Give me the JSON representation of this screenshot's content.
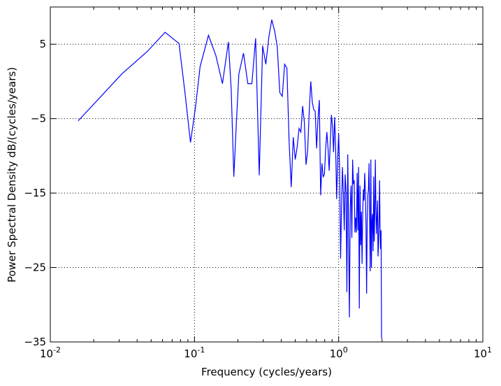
{
  "chart_data": {
    "type": "line",
    "title": "",
    "xlabel": "Frequency (cycles/years)",
    "ylabel": "Power Spectral Density dB/(cycles/years)",
    "xscale": "log",
    "xlim": [
      0.01,
      10
    ],
    "ylim": [
      -35,
      10
    ],
    "grid": true,
    "x_ticks": [
      {
        "value": 0.01,
        "base": "10",
        "exp": "-2"
      },
      {
        "value": 0.1,
        "base": "10",
        "exp": "-1"
      },
      {
        "value": 1,
        "base": "10",
        "exp": "0"
      },
      {
        "value": 10,
        "base": "10",
        "exp": "1"
      }
    ],
    "y_ticks": [
      {
        "value": 5,
        "label": "5"
      },
      {
        "value": -5,
        "label": "−5"
      },
      {
        "value": -15,
        "label": "−15"
      },
      {
        "value": -25,
        "label": "−25"
      },
      {
        "value": -35,
        "label": "−35"
      }
    ],
    "series": [
      {
        "color": "#0000ff",
        "points": [
          [
            0.0156,
            -5.3
          ],
          [
            0.0313,
            1.0
          ],
          [
            0.0469,
            4.0
          ],
          [
            0.0625,
            6.6
          ],
          [
            0.0781,
            5.1
          ],
          [
            0.0859,
            -1.5
          ],
          [
            0.0938,
            -8.2
          ],
          [
            0.1016,
            -3.5
          ],
          [
            0.1094,
            2.0
          ],
          [
            0.125,
            6.2
          ],
          [
            0.1406,
            3.5
          ],
          [
            0.1563,
            -0.3
          ],
          [
            0.1719,
            5.3
          ],
          [
            0.1797,
            -1.0
          ],
          [
            0.1875,
            -12.8
          ],
          [
            0.1953,
            -5.5
          ],
          [
            0.2031,
            1.0
          ],
          [
            0.2188,
            3.8
          ],
          [
            0.2344,
            -0.3
          ],
          [
            0.25,
            -0.3
          ],
          [
            0.2656,
            5.8
          ],
          [
            0.2813,
            -12.6
          ],
          [
            0.2969,
            4.8
          ],
          [
            0.3125,
            2.3
          ],
          [
            0.3281,
            6.0
          ],
          [
            0.3438,
            8.3
          ],
          [
            0.3594,
            6.8
          ],
          [
            0.375,
            4.7
          ],
          [
            0.3906,
            -1.5
          ],
          [
            0.4063,
            -2.0
          ],
          [
            0.4219,
            2.3
          ],
          [
            0.4375,
            1.8
          ],
          [
            0.4531,
            -8.0
          ],
          [
            0.4688,
            -14.2
          ],
          [
            0.4844,
            -7.5
          ],
          [
            0.5,
            -10.5
          ],
          [
            0.5156,
            -8.8
          ],
          [
            0.5313,
            -6.3
          ],
          [
            0.5469,
            -6.8
          ],
          [
            0.5625,
            -3.3
          ],
          [
            0.5781,
            -5.5
          ],
          [
            0.5938,
            -11.2
          ],
          [
            0.6094,
            -9.3
          ],
          [
            0.625,
            -4.0
          ],
          [
            0.6406,
            0.0
          ],
          [
            0.6563,
            -2.8
          ],
          [
            0.6719,
            -3.8
          ],
          [
            0.6875,
            -4.0
          ],
          [
            0.7031,
            -9.0
          ],
          [
            0.7188,
            -5.0
          ],
          [
            0.7344,
            -2.5
          ],
          [
            0.75,
            -15.3
          ],
          [
            0.7656,
            -11.0
          ],
          [
            0.7813,
            -12.8
          ],
          [
            0.7969,
            -12.5
          ],
          [
            0.8125,
            -9.0
          ],
          [
            0.8281,
            -6.8
          ],
          [
            0.8438,
            -9.0
          ],
          [
            0.8594,
            -12.0
          ],
          [
            0.875,
            -8.0
          ],
          [
            0.8906,
            -4.5
          ],
          [
            0.9063,
            -6.0
          ],
          [
            0.9219,
            -9.5
          ],
          [
            0.9375,
            -4.8
          ],
          [
            0.9531,
            -9.0
          ],
          [
            0.9688,
            -15.8
          ],
          [
            0.9844,
            -10.5
          ],
          [
            1.0,
            -7.0
          ],
          [
            1.0156,
            -12.0
          ],
          [
            1.0313,
            -23.8
          ],
          [
            1.0469,
            -17.0
          ],
          [
            1.0625,
            -11.5
          ],
          [
            1.0781,
            -15.0
          ],
          [
            1.0938,
            -20.0
          ],
          [
            1.1094,
            -12.5
          ],
          [
            1.125,
            -14.8
          ],
          [
            1.1406,
            -28.3
          ],
          [
            1.1563,
            -9.8
          ],
          [
            1.1719,
            -20.3
          ],
          [
            1.1875,
            -31.7
          ],
          [
            1.2031,
            -17.0
          ],
          [
            1.2188,
            -14.0
          ],
          [
            1.2344,
            -21.0
          ],
          [
            1.25,
            -10.5
          ],
          [
            1.2656,
            -13.8
          ],
          [
            1.2813,
            -13.3
          ],
          [
            1.2969,
            -20.3
          ],
          [
            1.3125,
            -18.3
          ],
          [
            1.3281,
            -20.3
          ],
          [
            1.3438,
            -12.3
          ],
          [
            1.3594,
            -20.0
          ],
          [
            1.375,
            -11.5
          ],
          [
            1.3906,
            -30.5
          ],
          [
            1.4063,
            -14.0
          ],
          [
            1.4219,
            -22.0
          ],
          [
            1.4375,
            -17.5
          ],
          [
            1.4531,
            -24.5
          ],
          [
            1.4688,
            -17.5
          ],
          [
            1.4844,
            -14.5
          ],
          [
            1.5,
            -16.0
          ],
          [
            1.5156,
            -12.3
          ],
          [
            1.5313,
            -14.8
          ],
          [
            1.5469,
            -19.3
          ],
          [
            1.5625,
            -28.5
          ],
          [
            1.5781,
            -18.5
          ],
          [
            1.5938,
            -15.3
          ],
          [
            1.6094,
            -14.5
          ],
          [
            1.625,
            -11.0
          ],
          [
            1.6406,
            -18.8
          ],
          [
            1.6563,
            -25.5
          ],
          [
            1.6719,
            -10.5
          ],
          [
            1.6875,
            -25.0
          ],
          [
            1.7031,
            -18.8
          ],
          [
            1.7188,
            -17.8
          ],
          [
            1.7344,
            -22.8
          ],
          [
            1.75,
            -12.8
          ],
          [
            1.7656,
            -21.5
          ],
          [
            1.7813,
            -17.5
          ],
          [
            1.7969,
            -10.5
          ],
          [
            1.8125,
            -16.8
          ],
          [
            1.8281,
            -20.5
          ],
          [
            1.8438,
            -18.3
          ],
          [
            1.8594,
            -16.0
          ],
          [
            1.875,
            -23.5
          ],
          [
            1.8906,
            -22.0
          ],
          [
            1.9063,
            -18.5
          ],
          [
            1.9219,
            -13.3
          ],
          [
            1.9375,
            -19.5
          ],
          [
            1.9531,
            -22.5
          ],
          [
            1.9688,
            -20.0
          ],
          [
            1.9844,
            -34.6
          ]
        ]
      }
    ]
  }
}
